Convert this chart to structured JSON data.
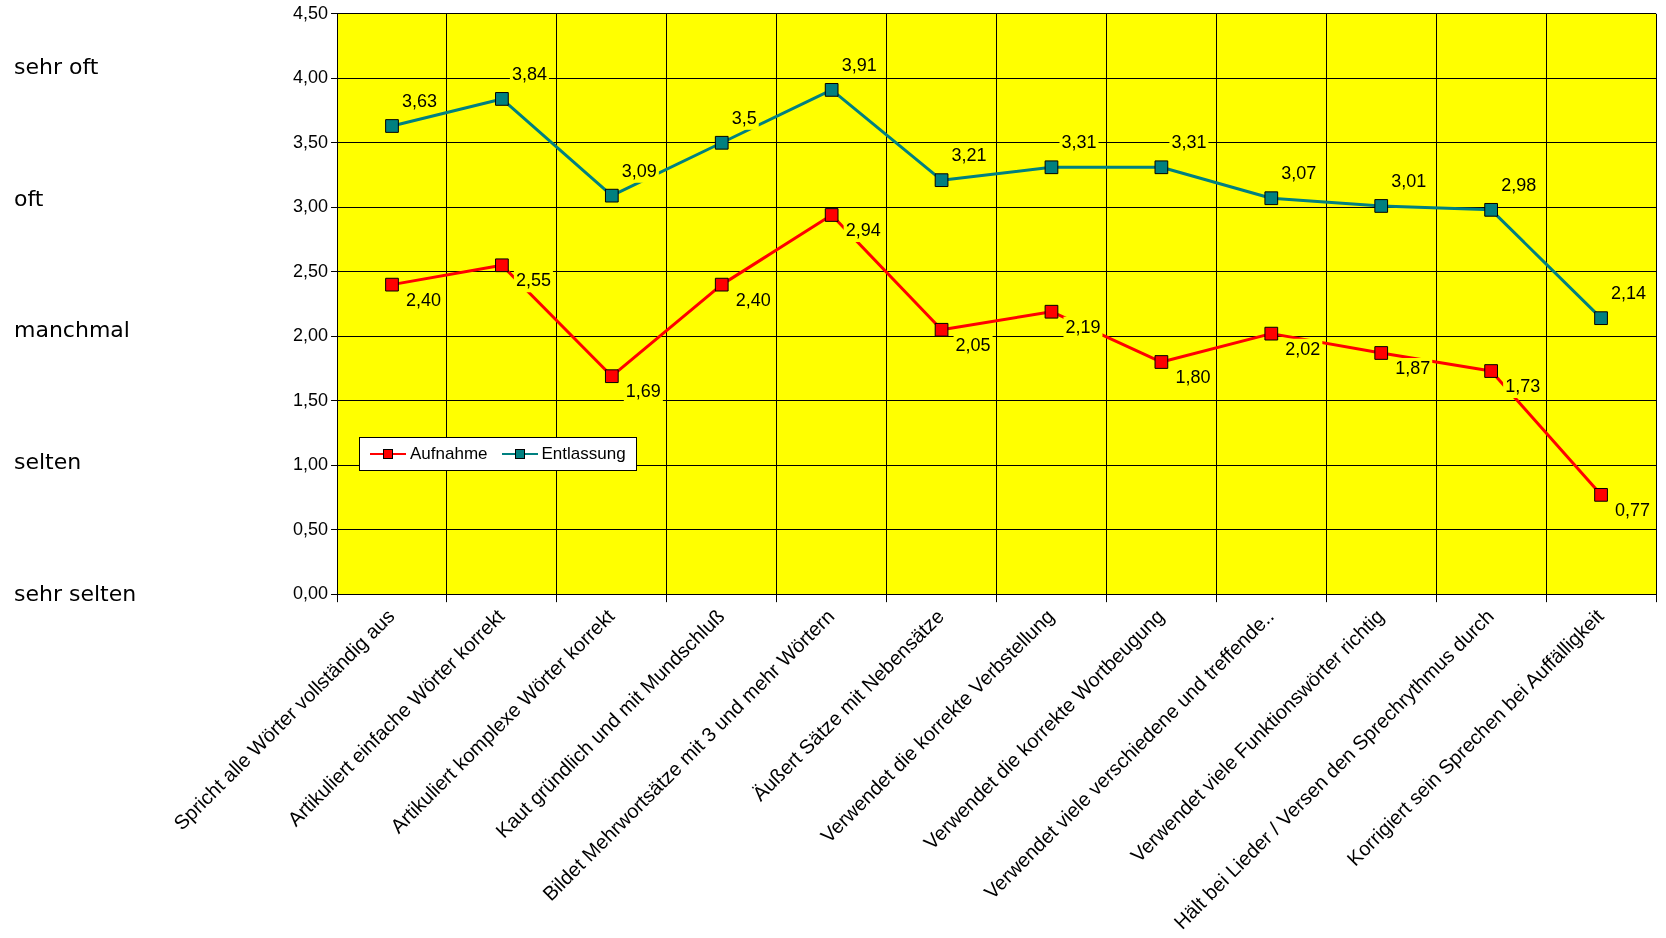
{
  "chart_data": {
    "type": "line",
    "categories": [
      "Spricht alle Wörter vollständig aus",
      "Artikuliert einfache Wörter korrekt",
      "Artikuliert komplexe Wörter korrekt",
      "Kaut gründlich und mit Mundschluß",
      "Bildet Mehrwortsätze mit 3 und mehr Wörtern",
      "Äußert Sätze mit Nebensätze",
      "Verwendet die korrekte Verbstellung",
      "Verwendet die korrekte Wortbeugung",
      "Verwendet viele verschiedene und treffende..",
      "Verwendet viele Funktionswörter richtig",
      "Hält bei Lieder / Versen den Sprechrythmus durch",
      "Korrigiert sein Sprechen bei Auffälligkeit"
    ],
    "series": [
      {
        "name": "Aufnahme",
        "color": "#ff0000",
        "values": [
          2.4,
          2.55,
          1.69,
          2.4,
          2.94,
          2.05,
          2.19,
          1.8,
          2.02,
          1.87,
          1.73,
          0.77
        ],
        "value_labels": [
          "2,40",
          "2,55",
          "1,69",
          "2,40",
          "2,94",
          "2,05",
          "2,19",
          "1,80",
          "2,02",
          "1,87",
          "1,73",
          "0,77"
        ]
      },
      {
        "name": "Entlassung",
        "color": "#008080",
        "values": [
          3.63,
          3.84,
          3.09,
          3.5,
          3.91,
          3.21,
          3.31,
          3.31,
          3.07,
          3.01,
          2.98,
          2.14
        ],
        "value_labels": [
          "3,63",
          "3,84",
          "3,09",
          "3,5",
          "3,91",
          "3,21",
          "3,31",
          "3,31",
          "3,07",
          "3,01",
          "2,98",
          "2,14"
        ]
      }
    ],
    "ylim": [
      0,
      4.5
    ],
    "yticks": [
      {
        "value": 0,
        "label": "0,00"
      },
      {
        "value": 0.5,
        "label": "0,50"
      },
      {
        "value": 1,
        "label": "1,00"
      },
      {
        "value": 1.5,
        "label": "1,50"
      },
      {
        "value": 2,
        "label": "2,00"
      },
      {
        "value": 2.5,
        "label": "2,50"
      },
      {
        "value": 3,
        "label": "3,00"
      },
      {
        "value": 3.5,
        "label": "3,50"
      },
      {
        "value": 4,
        "label": "4,00"
      },
      {
        "value": 4.5,
        "label": "4,50"
      }
    ],
    "annotations": [
      "sehr oft",
      "oft",
      "manchmal",
      "selten",
      "sehr selten"
    ],
    "grid": true,
    "legend": "bottom left",
    "marker": "square",
    "line_style": "solid"
  }
}
